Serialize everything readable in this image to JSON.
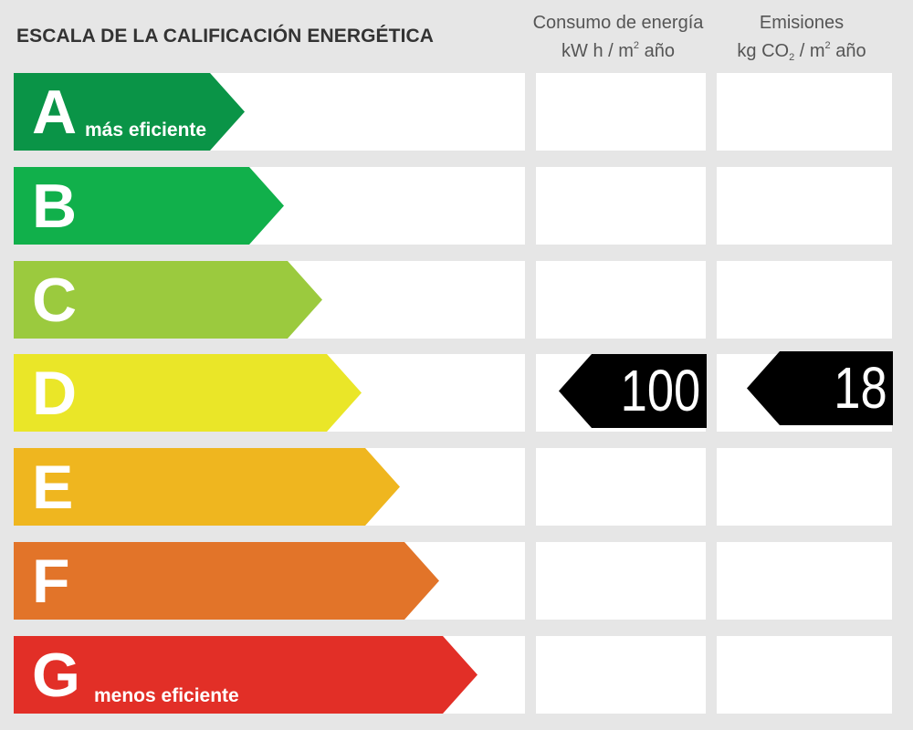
{
  "title": "ESCALA DE LA CALIFICACIÓN ENERGÉTICA",
  "columns": {
    "energy": {
      "line1": "Consumo de energía",
      "unit_a": "kW h  / m",
      "unit_sup": "2",
      "unit_b": " año"
    },
    "emissions": {
      "line1": "Emisiones",
      "unit_a": "kg CO",
      "unit_sub": "2",
      "unit_mid": "  / m",
      "unit_sup": "2",
      "unit_b": " año"
    }
  },
  "ratings": [
    {
      "letter": "A",
      "label": "más eficiente",
      "color": "#0a9447"
    },
    {
      "letter": "B",
      "label": "",
      "color": "#11b04b"
    },
    {
      "letter": "C",
      "label": "",
      "color": "#9bca3e"
    },
    {
      "letter": "D",
      "label": "",
      "color": "#eae628"
    },
    {
      "letter": "E",
      "label": "",
      "color": "#efb61f"
    },
    {
      "letter": "F",
      "label": "",
      "color": "#e27429"
    },
    {
      "letter": "G",
      "label": "menos eficiente",
      "color": "#e22f27"
    }
  ],
  "current": {
    "rating": "D",
    "energy_value": "100",
    "emissions_value": "18",
    "tag_color": "#000000"
  }
}
